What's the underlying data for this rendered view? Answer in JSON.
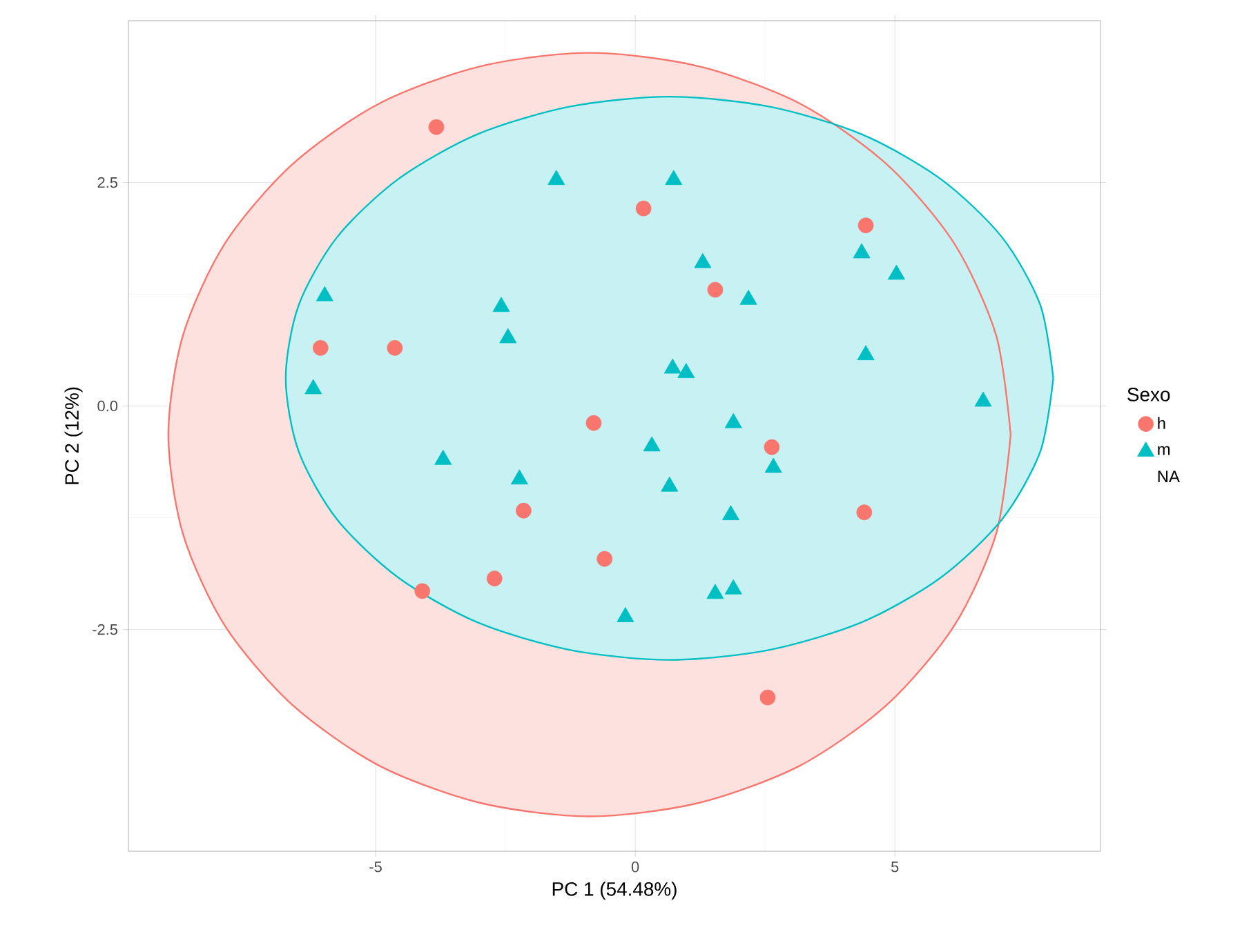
{
  "chart_data": {
    "type": "scatter",
    "xlabel": "PC 1 (54.48%)",
    "ylabel": "PC 2 (12%)",
    "legend_title": "Sexo",
    "legend": "right",
    "grid": true,
    "xlim": [
      -9.76,
      8.96
    ],
    "ylim": [
      -4.98,
      4.31
    ],
    "xticks": [
      -5,
      0,
      5
    ],
    "yticks": [
      -2.5,
      {
        "value": 0,
        "label": "0.0"
      },
      2.5
    ],
    "series": [
      {
        "type": "area",
        "color": "#f8766d",
        "x": [
          7.23,
          6.95,
          6.14,
          4.85,
          3.18,
          1.22,
          -0.88,
          -2.98,
          -4.94,
          -6.61,
          -7.9,
          -8.71,
          -8.99,
          -8.71,
          -7.9,
          -6.61,
          -4.94,
          -2.98,
          -0.88,
          1.22,
          3.18,
          4.85,
          6.14,
          6.95,
          7.23
        ],
        "values": [
          -0.32,
          0.79,
          1.82,
          2.7,
          3.38,
          3.8,
          3.95,
          3.8,
          3.38,
          2.7,
          1.82,
          0.79,
          -0.32,
          -1.43,
          -2.46,
          -3.34,
          -4.02,
          -4.44,
          -4.59,
          -4.44,
          -4.02,
          -3.34,
          -2.46,
          -1.43,
          -0.32
        ]
      },
      {
        "type": "area",
        "color": "#00bfc4",
        "x": [
          8.05,
          7.8,
          7.06,
          5.88,
          4.36,
          2.57,
          0.66,
          -1.25,
          -3.04,
          -4.56,
          -5.74,
          -6.48,
          -6.73,
          -6.48,
          -5.74,
          -4.56,
          -3.04,
          -1.25,
          0.66,
          2.57,
          4.36,
          5.88,
          7.06,
          7.8,
          8.05
        ],
        "values": [
          0.31,
          1.13,
          1.89,
          2.54,
          3.04,
          3.35,
          3.46,
          3.35,
          3.04,
          2.54,
          1.89,
          1.13,
          0.31,
          -0.51,
          -1.27,
          -1.92,
          -2.42,
          -2.73,
          -2.84,
          -2.73,
          -2.42,
          -1.92,
          -1.27,
          -0.51,
          0.31
        ]
      },
      {
        "name": "h",
        "color": "#f8766d",
        "marker": "circle",
        "x": [
          -3.83,
          0.16,
          4.44,
          1.54,
          -6.06,
          -4.63,
          -0.8,
          2.63,
          -2.15,
          4.41,
          -0.59,
          -2.71,
          -4.1,
          2.55
        ],
        "values": [
          3.12,
          2.21,
          2.02,
          1.3,
          0.65,
          0.65,
          -0.19,
          -0.46,
          -1.17,
          -1.19,
          -1.71,
          -1.93,
          -2.07,
          -3.26
        ]
      },
      {
        "name": "m",
        "color": "#00bfc4",
        "marker": "triangle",
        "x": [
          0.74,
          -1.52,
          1.3,
          4.36,
          5.03,
          2.18,
          -5.98,
          -2.58,
          -2.45,
          -6.2,
          0.72,
          0.98,
          4.44,
          6.7,
          -3.7,
          0.32,
          1.89,
          0.66,
          2.66,
          -2.23,
          1.84,
          -0.19,
          1.54,
          1.89
        ],
        "values": [
          2.53,
          2.53,
          1.6,
          1.71,
          1.47,
          1.19,
          1.23,
          1.11,
          0.76,
          0.19,
          0.42,
          0.37,
          0.57,
          0.05,
          -0.6,
          -0.45,
          -0.19,
          -0.9,
          -0.69,
          -0.82,
          -1.22,
          -2.36,
          -2.1,
          -2.05
        ]
      },
      {
        "name": "NA"
      }
    ]
  }
}
